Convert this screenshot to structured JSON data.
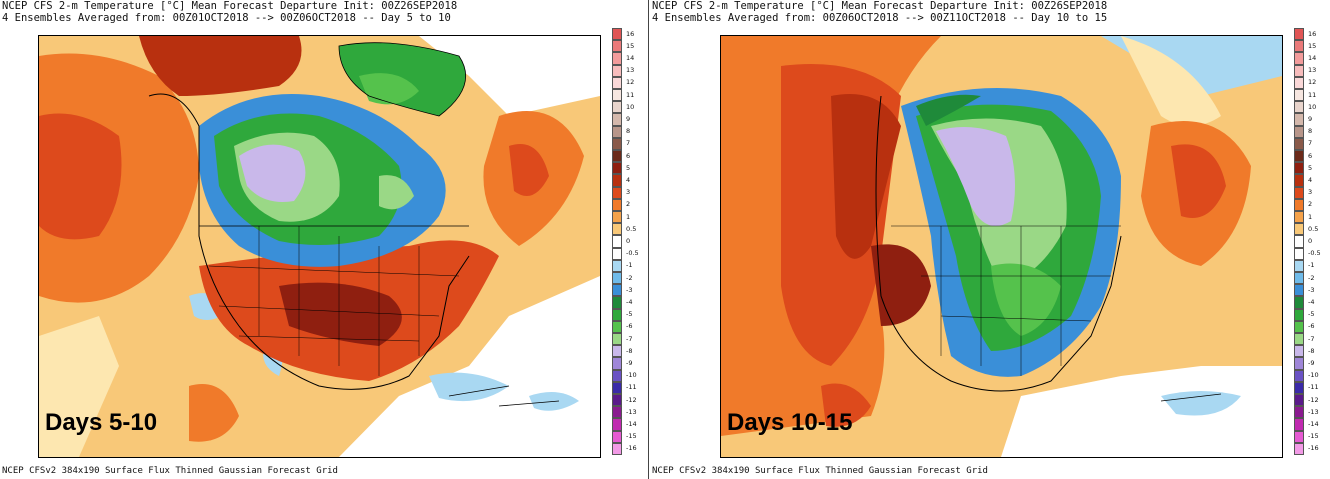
{
  "panels": [
    {
      "title_line1": "NCEP CFS 2-m Temperature [°C] Mean Forecast Departure Init: 00Z26SEP2018",
      "title_line2": "4 Ensembles Averaged from: 00Z01OCT2018 --> 00Z06OCT2018 -- Day 5 to 10",
      "days_label": "Days 5-10",
      "footer": "NCEP CFSv2 384x190 Surface Flux Thinned Gaussian Forecast Grid"
    },
    {
      "title_line1": "NCEP CFS 2-m Temperature [°C] Mean Forecast Departure Init: 00Z26SEP2018",
      "title_line2": "4 Ensembles Averaged from: 00Z06OCT2018 --> 00Z11OCT2018 -- Day 10 to 15",
      "days_label": "Days 10-15",
      "footer": "NCEP CFSv2 384x190 Surface Flux Thinned Gaussian Forecast Grid"
    }
  ],
  "colorbar": {
    "labels": [
      "16",
      "15",
      "14",
      "13",
      "12",
      "11",
      "10",
      "9",
      "8",
      "7",
      "6",
      "5",
      "4",
      "3",
      "2",
      "1",
      "0.5",
      "0",
      "-0.5",
      "-1",
      "-2",
      "-3",
      "-4",
      "-5",
      "-6",
      "-7",
      "-8",
      "-9",
      "-10",
      "-11",
      "-12",
      "-13",
      "-14",
      "-15",
      "-16"
    ],
    "colors": [
      "#e05555",
      "#ea7a7a",
      "#f29b9b",
      "#f7bcbc",
      "#fad8d8",
      "#f6e6e0",
      "#e8d4cc",
      "#d4b8ac",
      "#b8968a",
      "#8a5a4a",
      "#6b2a1a",
      "#8f1f10",
      "#b8300f",
      "#dd4a1c",
      "#f07a2a",
      "#f5a24a",
      "#f8c878",
      "#ffffff",
      "#ffffff",
      "#a9d8f2",
      "#6fbbea",
      "#3a8fd8",
      "#1f8a3a",
      "#2fa83c",
      "#55c24c",
      "#9ad886",
      "#c9b8ea",
      "#9f86d8",
      "#6a52c4",
      "#3a2aa8",
      "#5a1a8a",
      "#8a1a8f",
      "#c02ab0",
      "#e55ad2",
      "#f29ae6"
    ]
  }
}
